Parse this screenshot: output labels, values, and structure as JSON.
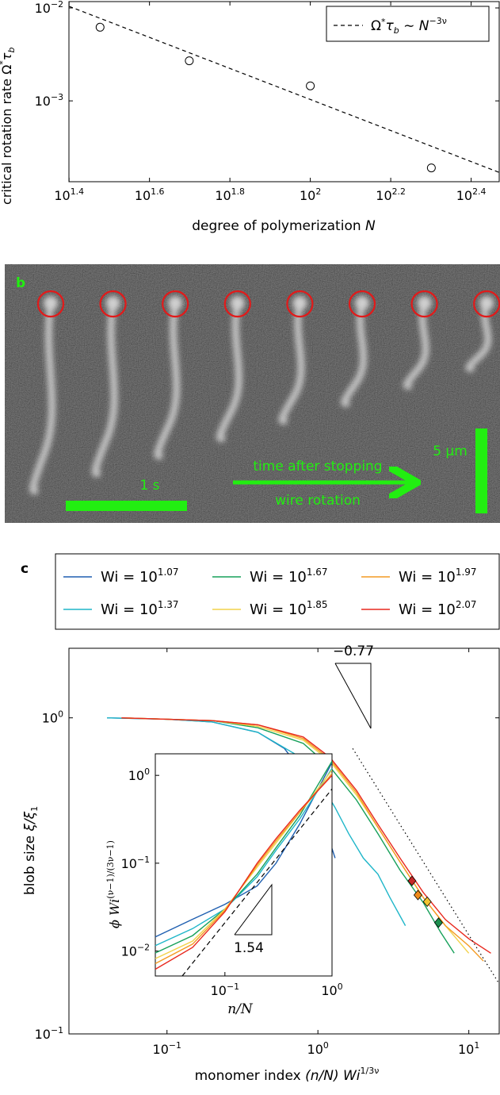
{
  "chart_data": [
    {
      "type": "scatter",
      "xlabel": "degree of polymerization",
      "xlabel_var": "N",
      "ylabel": "critical rotation rate Ω",
      "ylabel_sup": "*",
      "ylabel_var": "τ",
      "ylabel_sub": "b",
      "x_scale": "log",
      "y_scale": "log",
      "xlim": [
        25.1,
        295
      ],
      "ylim": [
        0.000135,
        0.0117
      ],
      "x_ticks": [
        {
          "value": 25.12,
          "base": "10",
          "exp": "1.4"
        },
        {
          "value": 39.81,
          "base": "10",
          "exp": "1.6"
        },
        {
          "value": 63.1,
          "base": "10",
          "exp": "1.8"
        },
        {
          "value": 100,
          "base": "10",
          "exp": "2"
        },
        {
          "value": 158.5,
          "base": "10",
          "exp": "2.2"
        },
        {
          "value": 251.2,
          "base": "10",
          "exp": "2.4"
        }
      ],
      "y_ticks": [
        {
          "value": 0.01,
          "base": "10",
          "exp": "−2"
        },
        {
          "value": 0.001,
          "base": "10",
          "exp": "−3"
        }
      ],
      "series": [
        {
          "kind": "points",
          "x": [
            30,
            50,
            100,
            200
          ],
          "y": [
            0.0062,
            0.0027,
            0.00145,
            0.00019
          ]
        },
        {
          "kind": "fit",
          "name": "Ω*τb ∼ N^(−3ν)",
          "x": [
            25.12,
            295
          ],
          "y": [
            0.0104,
            0.00017
          ]
        }
      ],
      "legend": {
        "position": "top-right",
        "text": "Ω",
        "sup": "*",
        "var": "τ",
        "sub": "b",
        "mid": " ∼ ",
        "base": "N",
        "exp": "−3ν"
      },
      "grid": false
    },
    {
      "type": "other",
      "panel_label": "b",
      "frame_count": 8,
      "time_bar_label": "1 s",
      "arrow_label_line1": "time after stopping",
      "arrow_label_line2": "wire rotation",
      "scale_bar_label": "5 µm",
      "label_color": "#22ee11",
      "circle_color": "#e21a1a"
    },
    {
      "type": "line",
      "panel_label": "c",
      "xlabel": "monomer index",
      "xlabel_expr": "(n/N) Wi",
      "xlabel_exp": "1/3ν",
      "ylabel": "blob size",
      "ylabel_expr": "ξ/ξ",
      "ylabel_sub": "1",
      "x_scale": "log",
      "y_scale": "log",
      "xlim": [
        0.0224,
        15.9
      ],
      "ylim": [
        0.1,
        1.66
      ],
      "x_ticks": [
        {
          "value": 0.1,
          "base": "10",
          "exp": "−1"
        },
        {
          "value": 1,
          "base": "10",
          "exp": "0"
        },
        {
          "value": 10,
          "base": "10",
          "exp": "1"
        }
      ],
      "y_ticks": [
        {
          "value": 1,
          "base": "10",
          "exp": "0"
        },
        {
          "value": 0.1,
          "base": "10",
          "exp": "−1"
        }
      ],
      "slope_label": "−0.77",
      "legend_entries": [
        {
          "label": "Wi = ",
          "base": "10",
          "exp": "1.07",
          "color": "#1f5fb0"
        },
        {
          "label": "Wi = ",
          "base": "10",
          "exp": "1.67",
          "color": "#16a05a"
        },
        {
          "label": "Wi = ",
          "base": "10",
          "exp": "1.97",
          "color": "#f49a22"
        },
        {
          "label": "Wi = ",
          "base": "10",
          "exp": "1.37",
          "color": "#1fb6c9"
        },
        {
          "label": "Wi = ",
          "base": "10",
          "exp": "1.85",
          "color": "#f2d24a"
        },
        {
          "label": "Wi = ",
          "base": "10",
          "exp": "2.07",
          "color": "#e8281e"
        }
      ],
      "series": [
        {
          "name": "Wi = 10^1.07",
          "color": "#1f5fb0",
          "x": [
            0.04,
            0.1,
            0.2,
            0.4,
            0.6,
            0.8,
            1.0,
            1.15,
            1.3
          ],
          "y": [
            1.0,
            0.99,
            0.97,
            0.9,
            0.8,
            0.67,
            0.52,
            0.43,
            0.36
          ]
        },
        {
          "name": "Wi = 10^1.37",
          "color": "#1fb6c9",
          "x": [
            0.04,
            0.1,
            0.2,
            0.4,
            0.7,
            1.0,
            1.3,
            1.6,
            2.0,
            2.5,
            3.0,
            3.8
          ],
          "y": [
            1.0,
            0.99,
            0.97,
            0.9,
            0.77,
            0.64,
            0.52,
            0.43,
            0.36,
            0.32,
            0.27,
            0.22
          ]
        },
        {
          "name": "Wi = 10^1.67",
          "color": "#16a05a",
          "x": [
            0.05,
            0.1,
            0.2,
            0.4,
            0.8,
            1.2,
            1.8,
            2.5,
            3.5,
            5.0,
            6.5,
            8.0
          ],
          "y": [
            1.0,
            0.99,
            0.98,
            0.93,
            0.83,
            0.7,
            0.55,
            0.43,
            0.33,
            0.26,
            0.21,
            0.18
          ]
        },
        {
          "name": "Wi = 10^1.85",
          "color": "#f2d24a",
          "x": [
            0.05,
            0.1,
            0.2,
            0.4,
            0.8,
            1.2,
            1.8,
            2.5,
            3.5,
            5.0,
            7.0,
            10.0
          ],
          "y": [
            1.0,
            0.99,
            0.98,
            0.94,
            0.85,
            0.73,
            0.57,
            0.45,
            0.35,
            0.27,
            0.22,
            0.18
          ]
        },
        {
          "name": "Wi = 10^1.97",
          "color": "#f49a22",
          "x": [
            0.05,
            0.1,
            0.2,
            0.4,
            0.8,
            1.2,
            1.8,
            2.5,
            3.5,
            5.0,
            7.0,
            10.0,
            12.5
          ],
          "y": [
            1.0,
            0.99,
            0.98,
            0.95,
            0.86,
            0.74,
            0.58,
            0.45,
            0.35,
            0.27,
            0.22,
            0.19,
            0.17
          ]
        },
        {
          "name": "Wi = 10^2.07",
          "color": "#e8281e",
          "x": [
            0.05,
            0.1,
            0.2,
            0.4,
            0.8,
            1.2,
            1.8,
            2.5,
            3.5,
            5.0,
            7.0,
            10.0,
            14.0
          ],
          "y": [
            1.0,
            0.99,
            0.98,
            0.95,
            0.87,
            0.75,
            0.59,
            0.46,
            0.36,
            0.28,
            0.23,
            0.2,
            0.18
          ]
        },
        {
          "name": "slope",
          "style": "dotted",
          "x": [
            1.7,
            15.9
          ],
          "y": [
            0.8,
            0.144
          ]
        }
      ],
      "markers": [
        {
          "x": 4.2,
          "y": 0.305,
          "color": "#c62828"
        },
        {
          "x": 4.6,
          "y": 0.275,
          "color": "#ef8a1a"
        },
        {
          "x": 5.3,
          "y": 0.262,
          "color": "#f2c531"
        },
        {
          "x": 6.3,
          "y": 0.225,
          "color": "#1b8f4e"
        }
      ],
      "inset": {
        "type": "line",
        "xlabel_expr": "n/N",
        "ylabel_expr": "ϕ Wi",
        "ylabel_exp": "(ν−1)/(3ν−1)",
        "x_scale": "log",
        "y_scale": "log",
        "xlim": [
          0.0224,
          1.0
        ],
        "ylim": [
          0.0052,
          1.76
        ],
        "x_ticks": [
          {
            "value": 0.1,
            "base": "10",
            "exp": "−1"
          },
          {
            "value": 1,
            "base": "10",
            "exp": "0"
          }
        ],
        "y_ticks": [
          {
            "value": 1,
            "base": "10",
            "exp": "0"
          },
          {
            "value": 0.1,
            "base": "10",
            "exp": "−1"
          },
          {
            "value": 0.01,
            "base": "10",
            "exp": "−2"
          }
        ],
        "slope_label": "1.54",
        "series": [
          {
            "name": "Wi = 10^1.07",
            "color": "#1f5fb0",
            "x": [
              0.0224,
              0.05,
              0.1,
              0.2,
              0.3,
              0.5,
              1.0
            ],
            "y": [
              0.0145,
              0.023,
              0.034,
              0.055,
              0.1,
              0.28,
              1.4
            ]
          },
          {
            "name": "Wi = 10^1.37",
            "color": "#1fb6c9",
            "x": [
              0.0224,
              0.05,
              0.1,
              0.2,
              0.3,
              0.5,
              1.0
            ],
            "y": [
              0.0115,
              0.018,
              0.03,
              0.07,
              0.14,
              0.32,
              1.2
            ]
          },
          {
            "name": "Wi = 10^1.67",
            "color": "#16a05a",
            "x": [
              0.0224,
              0.05,
              0.1,
              0.2,
              0.3,
              0.5,
              1.0
            ],
            "y": [
              0.0095,
              0.015,
              0.03,
              0.075,
              0.15,
              0.35,
              1.45
            ]
          },
          {
            "name": "Wi = 10^1.85",
            "color": "#f2d24a",
            "x": [
              0.0224,
              0.05,
              0.1,
              0.2,
              0.3,
              0.5,
              1.0
            ],
            "y": [
              0.0082,
              0.013,
              0.03,
              0.09,
              0.17,
              0.38,
              1.15
            ]
          },
          {
            "name": "Wi = 10^1.97",
            "color": "#f49a22",
            "x": [
              0.0224,
              0.05,
              0.1,
              0.2,
              0.3,
              0.5,
              1.0
            ],
            "y": [
              0.0072,
              0.012,
              0.029,
              0.095,
              0.18,
              0.38,
              1.05
            ]
          },
          {
            "name": "Wi = 10^2.07",
            "color": "#e8281e",
            "x": [
              0.0224,
              0.05,
              0.1,
              0.2,
              0.3,
              0.5,
              1.0
            ],
            "y": [
              0.0062,
              0.011,
              0.028,
              0.1,
              0.19,
              0.4,
              1.0
            ]
          },
          {
            "name": "slope",
            "style": "dashed",
            "x": [
              0.04,
              1.0
            ],
            "y": [
              0.0052,
              0.7
            ]
          }
        ]
      }
    }
  ]
}
